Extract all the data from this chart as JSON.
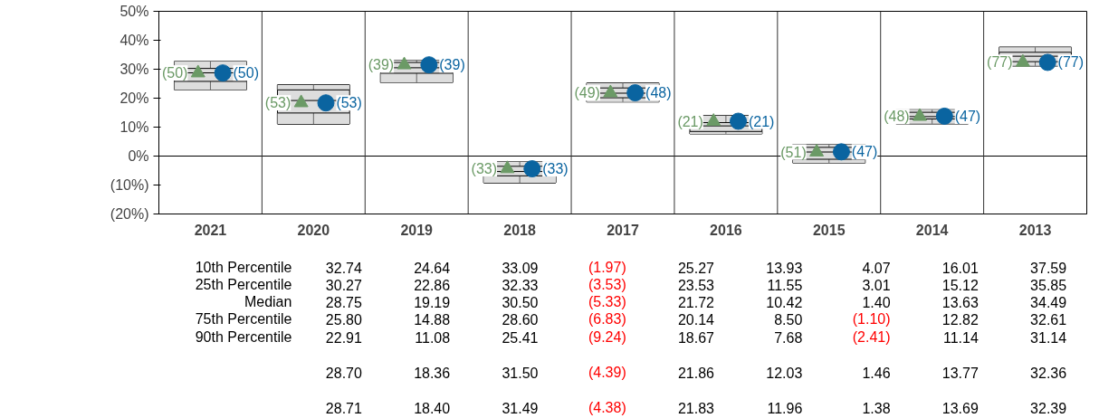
{
  "chart_data": {
    "type": "box",
    "categories": [
      "2021",
      "2020",
      "2019",
      "2018",
      "2017",
      "2016",
      "2015",
      "2014",
      "2013"
    ],
    "boxes": [
      {
        "high": 32.74,
        "q3": 30.27,
        "median": 28.75,
        "q1": 25.8,
        "low": 22.91
      },
      {
        "high": 24.64,
        "q3": 22.86,
        "median": 19.19,
        "q1": 14.88,
        "low": 11.08
      },
      {
        "high": 33.09,
        "q3": 32.33,
        "median": 30.5,
        "q1": 28.6,
        "low": 25.41
      },
      {
        "high": -1.97,
        "q3": -3.53,
        "median": -5.33,
        "q1": -6.83,
        "low": -9.24
      },
      {
        "high": 25.27,
        "q3": 23.53,
        "median": 21.72,
        "q1": 20.14,
        "low": 18.67
      },
      {
        "high": 13.93,
        "q3": 11.55,
        "median": 10.42,
        "q1": 8.5,
        "low": 7.68
      },
      {
        "high": 4.07,
        "q3": 3.01,
        "median": 1.4,
        "q1": -1.1,
        "low": -2.41
      },
      {
        "high": 16.01,
        "q3": 15.12,
        "median": 13.63,
        "q1": 12.82,
        "low": 11.14
      },
      {
        "high": 37.59,
        "q3": 35.85,
        "median": 34.49,
        "q1": 32.61,
        "low": 31.14
      }
    ],
    "series": [
      {
        "type": "scatter",
        "marker": "circle",
        "color": "#0a64a0",
        "values": [
          28.7,
          18.36,
          31.5,
          -4.39,
          21.86,
          12.03,
          1.46,
          13.77,
          32.36
        ]
      },
      {
        "type": "scatter",
        "marker": "triangle",
        "color": "#6b9a66",
        "values": [
          28.71,
          18.4,
          31.49,
          -4.38,
          21.83,
          11.96,
          1.38,
          13.69,
          32.39
        ]
      }
    ],
    "annotations": [
      "10th Percentile",
      "25th Percentile",
      "Median",
      "75th Percentile",
      "90th Percentile",
      {
        "text": "(50)",
        "x": "2021",
        "y": 28.7
      },
      {
        "text": "(50)",
        "x": "2021",
        "y": 28.71
      },
      {
        "text": "(53)",
        "x": "2020",
        "y": 18.36
      },
      {
        "text": "(53)",
        "x": "2020",
        "y": 18.4
      },
      {
        "text": "(39)",
        "x": "2019",
        "y": 31.5
      },
      {
        "text": "(39)",
        "x": "2019",
        "y": 31.49
      },
      {
        "text": "(33)",
        "x": "2018",
        "y": -4.39
      },
      {
        "text": "(33)",
        "x": "2018",
        "y": -4.38
      },
      {
        "text": "(48)",
        "x": "2017",
        "y": 21.86
      },
      {
        "text": "(49)",
        "x": "2017",
        "y": 21.83
      },
      {
        "text": "(21)",
        "x": "2016",
        "y": 12.03
      },
      {
        "text": "(21)",
        "x": "2016",
        "y": 11.96
      },
      {
        "text": "(47)",
        "x": "2015",
        "y": 1.46
      },
      {
        "text": "(51)",
        "x": "2015",
        "y": 1.38
      },
      {
        "text": "(47)",
        "x": "2014",
        "y": 13.77
      },
      {
        "text": "(48)",
        "x": "2014",
        "y": 13.69
      },
      {
        "text": "(77)",
        "x": "2013",
        "y": 32.36
      },
      {
        "text": "(77)",
        "x": "2013",
        "y": 32.39
      },
      "32.74",
      "30.27",
      "28.75",
      "25.80",
      "22.91",
      "24.64",
      "22.86",
      "19.19",
      "14.88",
      "11.08",
      "33.09",
      "32.33",
      "30.50",
      "28.60",
      "25.41",
      "(1.97)",
      "(3.53)",
      "(5.33)",
      "(6.83)",
      "(9.24)",
      "25.27",
      "23.53",
      "21.72",
      "20.14",
      "18.67",
      "13.93",
      "11.55",
      "10.42",
      "8.50",
      "7.68",
      "4.07",
      "3.01",
      "1.40",
      "(1.10)",
      "(2.41)",
      "16.01",
      "15.12",
      "13.63",
      "12.82",
      "11.14",
      "37.59",
      "35.85",
      "34.49",
      "32.61",
      "31.14",
      "28.70",
      "18.36",
      "31.50",
      "(4.39)",
      "21.86",
      "12.03",
      "1.46",
      "13.77",
      "32.36",
      "28.71",
      "18.40",
      "31.49",
      "(4.38)",
      "21.83",
      "11.96",
      "1.38",
      "13.69",
      "32.39"
    ],
    "ylim": [
      -20,
      50
    ],
    "yticks": [
      {
        "value": -20,
        "label": "(20%)"
      },
      {
        "value": -10,
        "label": "(10%)"
      },
      {
        "value": 0,
        "label": "0%"
      },
      {
        "value": 10,
        "label": "10%"
      },
      {
        "value": 20,
        "label": "20%"
      },
      {
        "value": 30,
        "label": "30%"
      },
      {
        "value": 40,
        "label": "40%"
      },
      {
        "value": 50,
        "label": "50%"
      }
    ],
    "ref_lines": [
      {
        "axis": "y",
        "value": 0,
        "color": "#000000"
      }
    ],
    "grid": false,
    "legend": false
  }
}
